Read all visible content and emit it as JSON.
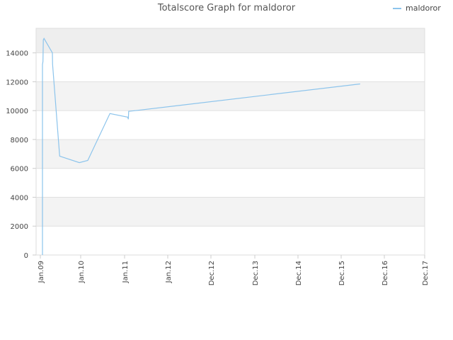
{
  "chart_data": {
    "type": "line",
    "title": "Totalscore Graph for maldoror",
    "legend": {
      "placement": "top-right"
    },
    "xlabel": "",
    "ylabel": "",
    "x_ticks": [
      "Jan.09",
      "Jan.10",
      "Jan.11",
      "Jan.12",
      "Dec.12",
      "Dec.13",
      "Dec.14",
      "Dec.15",
      "Dec.16",
      "Dec.17"
    ],
    "ylim": [
      0,
      15700
    ],
    "y_ticks": [
      0,
      2000,
      4000,
      6000,
      8000,
      10000,
      12000,
      14000
    ],
    "grid": true,
    "colors": {
      "series": "#8cc4ec",
      "band": "#f3f3f3",
      "band_top": "#eeeeee",
      "gridline": "#e0e0e0"
    },
    "series": [
      {
        "name": "maldoror",
        "points": [
          {
            "x": "2009-01-20",
            "y": 0
          },
          {
            "x": "2009-01-20",
            "y": 13200
          },
          {
            "x": "2009-01-25",
            "y": 13400
          },
          {
            "x": "2009-01-28",
            "y": 14900
          },
          {
            "x": "2009-02-03",
            "y": 15000
          },
          {
            "x": "2009-04-20",
            "y": 14000
          },
          {
            "x": "2009-04-22",
            "y": 13200
          },
          {
            "x": "2009-06-25",
            "y": 6850
          },
          {
            "x": "2009-12-20",
            "y": 6400
          },
          {
            "x": "2010-03-01",
            "y": 6550
          },
          {
            "x": "2010-09-01",
            "y": 9800
          },
          {
            "x": "2011-01-28",
            "y": 9550
          },
          {
            "x": "2011-02-02",
            "y": 9400
          },
          {
            "x": "2011-02-05",
            "y": 9950
          },
          {
            "x": "2011-04-01",
            "y": 10000
          },
          {
            "x": "2016-05-10",
            "y": 11850
          }
        ]
      }
    ]
  }
}
